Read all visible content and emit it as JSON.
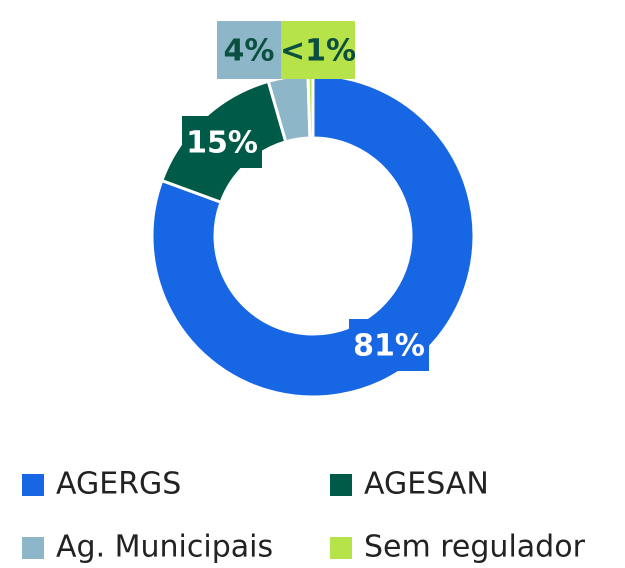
{
  "chart_data": {
    "type": "donut",
    "categories": [
      "AGERGS",
      "AGESAN",
      "Ag. Municipais",
      "Sem regulador"
    ],
    "values": [
      81,
      15,
      4,
      0.5
    ],
    "value_labels": [
      "81%",
      "15%",
      "4%",
      "<1%"
    ],
    "colors": [
      "#1766e4",
      "#005a48",
      "#8db6c8",
      "#b6e24a"
    ],
    "legend": "bottom"
  }
}
